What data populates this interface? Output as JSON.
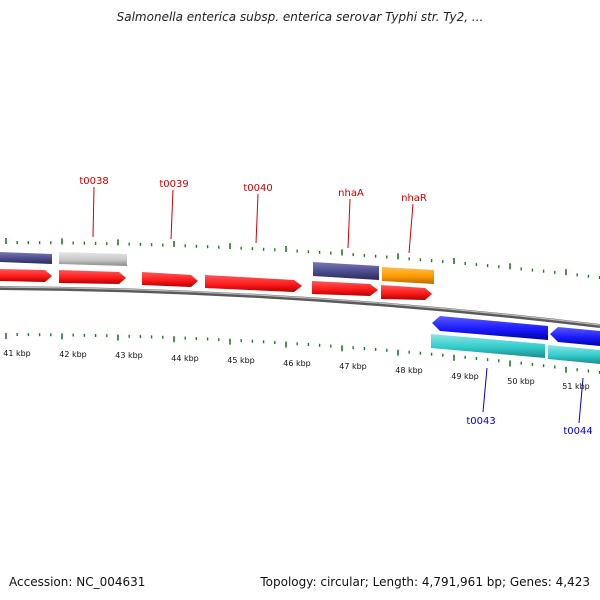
{
  "title": "Salmonella enterica subsp. enterica serovar Typhi str. Ty2, ...",
  "footer": {
    "accession": "Accession: NC_004631",
    "summary": "Topology: circular; Length: 4,791,961 bp; Genes: 4,423"
  },
  "colors": {
    "backbone": "#808080",
    "tick": "#1f7a1f",
    "gene_red": "#ff1a1a",
    "gene_purple": "#4a4a8c",
    "gene_gray": "#c8c8c8",
    "gene_orange": "#ff9900",
    "gene_blue": "#1a1aff",
    "gene_cyan": "#33cccc",
    "label_red": "#cc0000",
    "label_blue": "#0000cc"
  },
  "scale_labels": [
    "41 kbp",
    "42 kbp",
    "43 kbp",
    "44 kbp",
    "45 kbp",
    "46 kbp",
    "47 kbp",
    "48 kbp",
    "49 kbp",
    "50 kbp",
    "51 kbp"
  ],
  "gene_labels_top": [
    "t0038",
    "t0039",
    "t0040",
    "nhaA",
    "nhaR"
  ],
  "gene_labels_bottom": [
    "t0043",
    "t0044"
  ]
}
